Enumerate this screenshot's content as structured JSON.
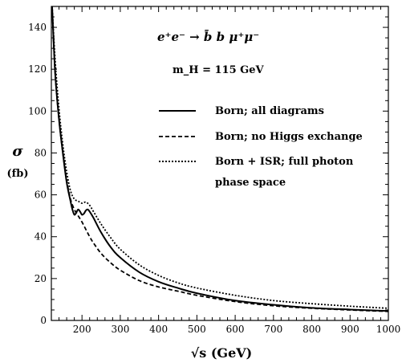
{
  "chart_data": {
    "type": "line",
    "title": "e⁺e⁻ → b̄ b μ⁺μ⁻",
    "subtitle": "m_H = 115  GeV",
    "xlabel": "√s  (GeV)",
    "ylabel": "σ",
    "ylabel_unit": "(fb)",
    "xlim": [
      120,
      1000
    ],
    "ylim": [
      0,
      150
    ],
    "xticks": [
      200,
      300,
      400,
      500,
      600,
      700,
      800,
      900,
      1000
    ],
    "yticks": [
      0,
      20,
      40,
      60,
      80,
      100,
      120,
      140
    ],
    "legend_position": "right",
    "grid": false,
    "series": [
      {
        "name": "Born; all diagrams",
        "style": "solid",
        "x": [
          122,
          130,
          140,
          150,
          160,
          170,
          175,
          180,
          185,
          190,
          195,
          200,
          205,
          210,
          215,
          220,
          230,
          250,
          275,
          300,
          350,
          400,
          450,
          500,
          600,
          700,
          800,
          900,
          1000
        ],
        "y": [
          150,
          118,
          96,
          80,
          66,
          57,
          53,
          50.5,
          51.5,
          53,
          52,
          50.5,
          51,
          52.5,
          53,
          52,
          49,
          42,
          35,
          30,
          23,
          18.5,
          15.5,
          13,
          9.5,
          7.5,
          6,
          5.2,
          4.5
        ]
      },
      {
        "name": "Born; no Higgs exchange",
        "style": "dashed",
        "x": [
          122,
          130,
          140,
          150,
          160,
          170,
          180,
          190,
          200,
          210,
          220,
          230,
          250,
          275,
          300,
          350,
          400,
          450,
          500,
          600,
          700,
          800,
          900,
          1000
        ],
        "y": [
          150,
          118,
          96,
          80,
          67,
          58,
          53,
          50,
          47,
          43.5,
          40,
          37,
          32,
          27.5,
          24,
          19,
          16,
          14,
          12,
          9,
          7,
          5.8,
          5,
          4.3
        ]
      },
      {
        "name": "Born + ISR; full photon",
        "name_line2": "phase space",
        "style": "dotted",
        "x": [
          122,
          130,
          140,
          150,
          160,
          170,
          180,
          190,
          200,
          210,
          220,
          230,
          250,
          275,
          300,
          350,
          400,
          450,
          500,
          600,
          700,
          800,
          900,
          1000
        ],
        "y": [
          150,
          124,
          101,
          84,
          71,
          62,
          58,
          57,
          56,
          56.5,
          55,
          52,
          46,
          39.5,
          34,
          26.5,
          21.5,
          18,
          15.5,
          12,
          9.5,
          8,
          6.8,
          5.8
        ]
      }
    ]
  }
}
